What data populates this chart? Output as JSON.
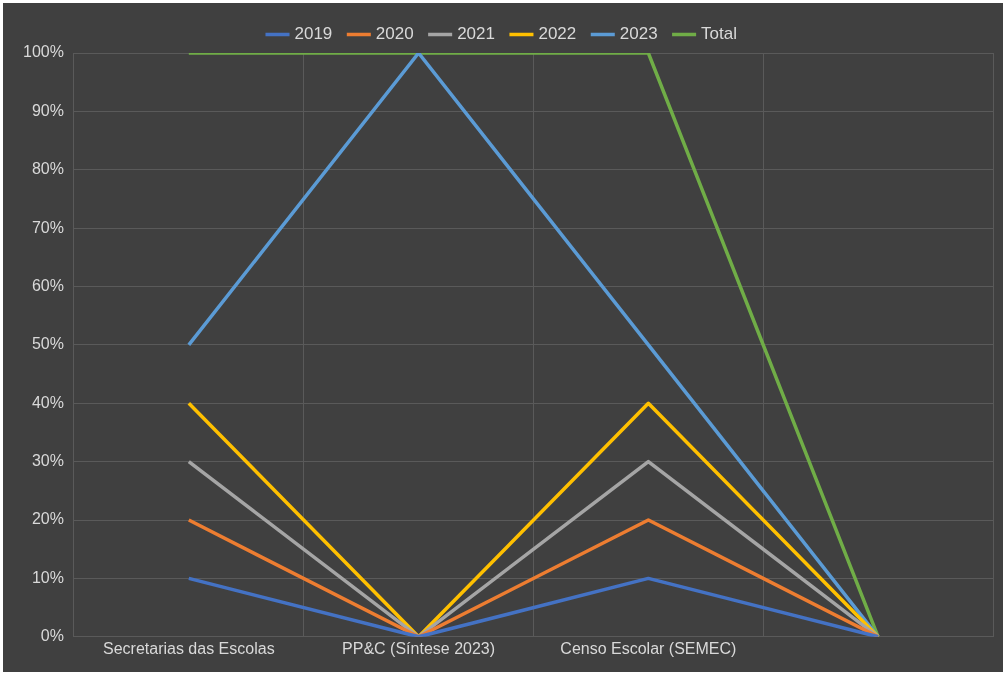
{
  "chart_data": {
    "type": "line",
    "categories": [
      "Secretarias das Escolas",
      "PP&C (Síntese 2023)",
      "Censo Escolar (SEMEC)",
      null
    ],
    "series": [
      {
        "name": "2019",
        "color": "#4472c4",
        "values": [
          10,
          0,
          10,
          0
        ]
      },
      {
        "name": "2020",
        "color": "#ed7d31",
        "values": [
          20,
          0,
          20,
          0
        ]
      },
      {
        "name": "2021",
        "color": "#a5a5a5",
        "values": [
          30,
          0,
          30,
          0
        ]
      },
      {
        "name": "2022",
        "color": "#ffc000",
        "values": [
          40,
          0,
          40,
          0
        ]
      },
      {
        "name": "2023",
        "color": "#5b9bd5",
        "values": [
          50,
          100,
          50,
          0
        ]
      },
      {
        "name": "Total",
        "color": "#70ad47",
        "values": [
          100,
          100,
          100,
          0
        ]
      }
    ],
    "ylim": [
      0,
      100
    ],
    "yticks": [
      {
        "value": 0,
        "label": "0%"
      },
      {
        "value": 10,
        "label": "10%"
      },
      {
        "value": 20,
        "label": "20%"
      },
      {
        "value": 30,
        "label": "30%"
      },
      {
        "value": 40,
        "label": "40%"
      },
      {
        "value": 50,
        "label": "50%"
      },
      {
        "value": 60,
        "label": "60%"
      },
      {
        "value": 70,
        "label": "70%"
      },
      {
        "value": 80,
        "label": "80%"
      },
      {
        "value": 90,
        "label": "90%"
      },
      {
        "value": 100,
        "label": "100%"
      }
    ],
    "grid": true,
    "legend": "top",
    "marker": "none",
    "line_style": "solid"
  }
}
